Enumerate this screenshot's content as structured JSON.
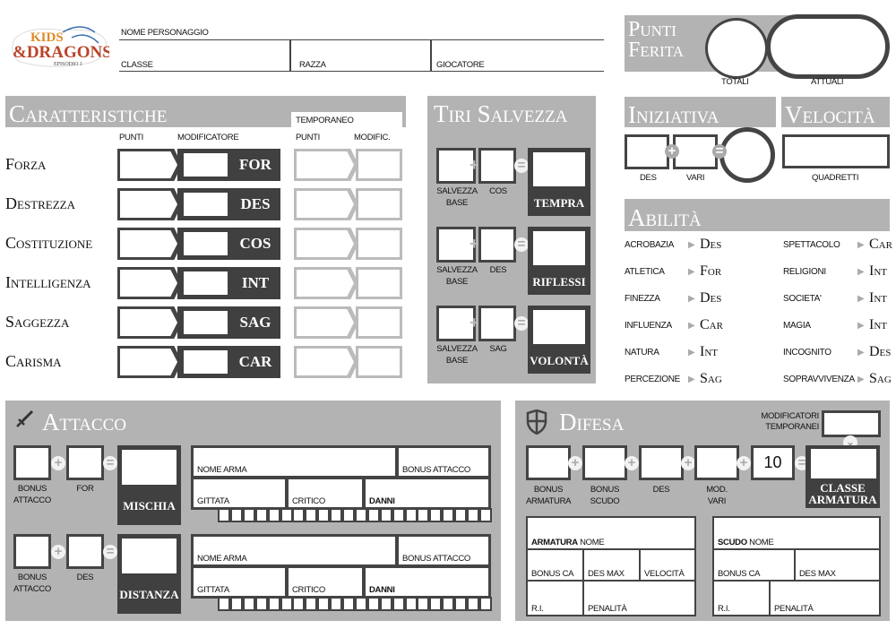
{
  "logo": {
    "text": "Kids & Dragons",
    "subtitle": "Episodio 1"
  },
  "header": {
    "character_name": "NOME PERSONAGGIO",
    "class": "CLASSE",
    "race": "RAZZA",
    "player": "GIOCATORE"
  },
  "characteristics": {
    "title": "Caratteristiche",
    "temp_label": "TEMPORANEO",
    "col_points": "PUNTI",
    "col_mod": "MODIFICATORE",
    "col_temp_points": "PUNTI",
    "col_temp_mod": "MODIFIC.",
    "rows": [
      {
        "name": "Forza",
        "abbr": "FOR"
      },
      {
        "name": "Destrezza",
        "abbr": "DES"
      },
      {
        "name": "Costituzione",
        "abbr": "COS"
      },
      {
        "name": "Intelligenza",
        "abbr": "INT"
      },
      {
        "name": "Saggezza",
        "abbr": "SAG"
      },
      {
        "name": "Carisma",
        "abbr": "CAR"
      }
    ]
  },
  "saves": {
    "title": "Tiri Salvezza",
    "rows": [
      {
        "base": "SALVEZZA\nBASE",
        "stat": "COS",
        "name": "TEMPRA"
      },
      {
        "base": "SALVEZZA\nBASE",
        "stat": "DES",
        "name": "RIFLESSI"
      },
      {
        "base": "SALVEZZA\nBASE",
        "stat": "SAG",
        "name": "VOLONTÀ"
      }
    ]
  },
  "hit_points": {
    "title_line1": "Punti",
    "title_line2": "Ferita",
    "total": "TOTALI",
    "current": "ATTUALI"
  },
  "initiative": {
    "title": "Iniziativa",
    "des": "DES",
    "misc": "VARI"
  },
  "speed": {
    "title": "Velocità",
    "unit": "QUADRETTI"
  },
  "skills": {
    "title": "Abilità",
    "left": [
      {
        "name": "ACROBAZIA",
        "attr": "Des"
      },
      {
        "name": "ATLETICA",
        "attr": "For"
      },
      {
        "name": "FINEZZA",
        "attr": "Des"
      },
      {
        "name": "INFLUENZA",
        "attr": "Car"
      },
      {
        "name": "NATURA",
        "attr": "Int"
      },
      {
        "name": "PERCEZIONE",
        "attr": "Sag"
      }
    ],
    "right": [
      {
        "name": "SPETTACOLO",
        "attr": "Car"
      },
      {
        "name": "RELIGIONI",
        "attr": "Int"
      },
      {
        "name": "SOCIETA'",
        "attr": "Int"
      },
      {
        "name": "MAGIA",
        "attr": "Int"
      },
      {
        "name": "INCOGNITO",
        "attr": "Des"
      },
      {
        "name": "SOPRAVVIVENZA",
        "attr": "Sag"
      }
    ]
  },
  "attack": {
    "title": "Attacco",
    "icon": "sword-icon",
    "rows": [
      {
        "bonus": "BONUS\nATTACCO",
        "stat": "FOR",
        "name": "MISCHIA",
        "weapon_name": "NOME ARMA",
        "attack_bonus": "BONUS ATTACCO",
        "range": "GITTATA",
        "critical": "CRITICO",
        "damage": "DANNI"
      },
      {
        "bonus": "BONUS\nATTACCO",
        "stat": "DES",
        "name": "DISTANZA",
        "weapon_name": "NOME ARMA",
        "attack_bonus": "BONUS ATTACCO",
        "range": "GITTATA",
        "critical": "CRITICO",
        "damage": "DANNI"
      }
    ]
  },
  "defense": {
    "title": "Difesa",
    "icon": "shield-icon",
    "temp_mods": "MODIFICATORI\nTEMPORANEI",
    "components": [
      "BONUS\nARMATURA",
      "BONUS\nSCUDO",
      "DES",
      "MOD.\nVARI"
    ],
    "base_value": "10",
    "result": "CLASSE\nARMATURA",
    "armor": {
      "label": "ARMATURA",
      "name": "NOME",
      "ac_bonus": "BONUS CA",
      "max_dex": "DES MAX",
      "speed": "VELOCITÀ",
      "ri": "R.I.",
      "penalty": "PENALITÀ"
    },
    "shield": {
      "label": "SCUDO",
      "name": "NOME",
      "ac_bonus": "BONUS CA",
      "max_dex": "DES MAX",
      "ri": "R.I.",
      "penalty": "PENALITÀ"
    }
  },
  "colors": {
    "panel": "#b3b3b3",
    "dark": "#404040",
    "border": "#444444"
  }
}
